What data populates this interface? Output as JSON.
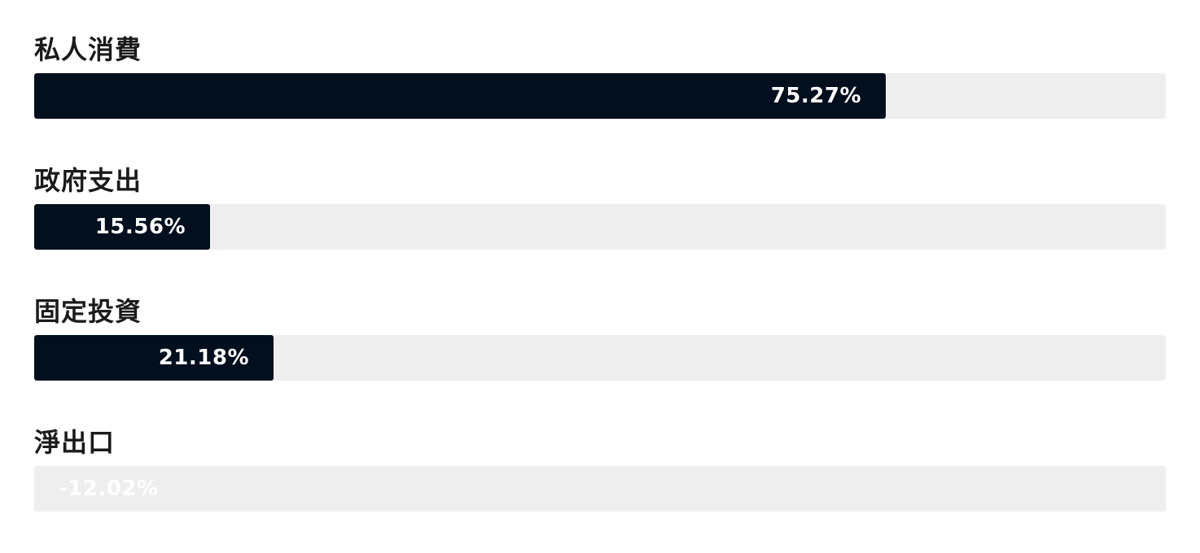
{
  "chart_data": {
    "type": "bar",
    "orientation": "horizontal",
    "categories": [
      "私人消費",
      "政府支出",
      "固定投資",
      "淨出口"
    ],
    "values": [
      75.27,
      15.56,
      21.18,
      -12.02
    ],
    "value_labels": [
      "75.27%",
      "15.56%",
      "21.18%",
      "-12.02%"
    ],
    "unit": "%",
    "xlim": [
      0,
      100
    ],
    "grid": false,
    "legend": "none"
  },
  "colors": {
    "bar": "#020f1e",
    "track": "#eeeeee",
    "label_text": "#1b1b1b",
    "value_text": "#ffffff"
  }
}
